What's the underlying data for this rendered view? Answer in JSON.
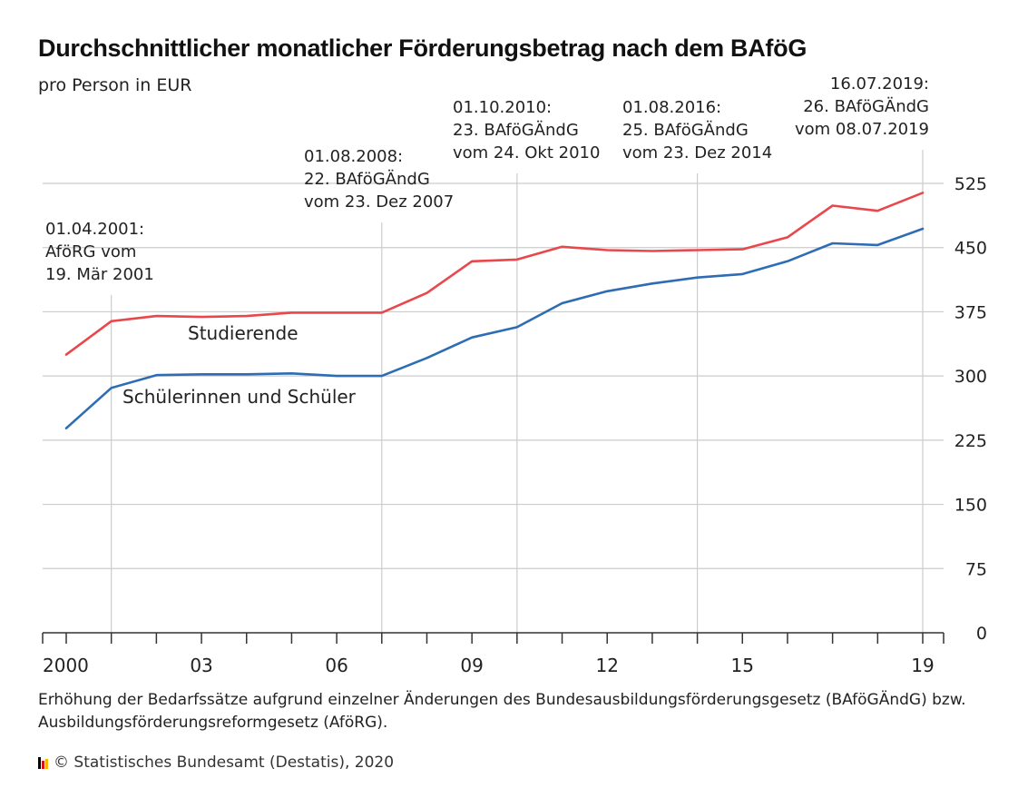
{
  "chart_data": {
    "type": "line",
    "title": "Durchschnittlicher monatlicher Förderungsbetrag nach dem BAföG",
    "subtitle": "pro Person in EUR",
    "x": [
      2000,
      2001,
      2002,
      2003,
      2004,
      2005,
      2006,
      2007,
      2008,
      2009,
      2010,
      2011,
      2012,
      2013,
      2014,
      2015,
      2016,
      2017,
      2018,
      2019
    ],
    "x_tick_values": [
      2000,
      2003,
      2006,
      2009,
      2012,
      2015,
      2019
    ],
    "x_tick_labels": [
      "2000",
      "03",
      "06",
      "09",
      "12",
      "15",
      "19"
    ],
    "ylim": [
      0,
      525
    ],
    "y_ticks": [
      0,
      75,
      150,
      225,
      300,
      375,
      450,
      525
    ],
    "grid": true,
    "series": [
      {
        "name": "Studierende",
        "color": "#e8474c",
        "values": [
          325,
          364,
          370,
          369,
          370,
          374,
          374,
          374,
          397,
          434,
          436,
          451,
          447,
          446,
          447,
          448,
          462,
          499,
          493,
          514
        ]
      },
      {
        "name": "Schülerinnen und Schüler",
        "color": "#2e6db4",
        "values": [
          239,
          286,
          301,
          302,
          302,
          303,
          300,
          300,
          321,
          345,
          357,
          385,
          399,
          408,
          415,
          419,
          434,
          455,
          453,
          472
        ]
      }
    ],
    "annotations": [
      {
        "x": 2001.0,
        "lines": [
          "01.04.2001:",
          "AföRG vom",
          "19. Mär 2001"
        ]
      },
      {
        "x": 2007.0,
        "lines": [
          "01.08.2008:",
          "22. BAföGÄndG",
          "vom 23. Dez 2007"
        ]
      },
      {
        "x": 2010.0,
        "lines": [
          "01.10.2010:",
          "23. BAföGÄndG",
          "vom 24. Okt 2010"
        ]
      },
      {
        "x": 2014.0,
        "lines": [
          "01.08.2016:",
          "25. BAföGÄndG",
          "vom 23. Dez 2014"
        ]
      },
      {
        "x": 2019.0,
        "lines": [
          "16.07.2019:",
          "26. BAföGÄndG",
          "vom 08.07.2019"
        ]
      }
    ]
  },
  "footnote": "Erhöhung der Bedarfssätze aufgrund einzelner Änderungen des Bundesausbildungsförderungsgesetz (BAföGÄndG) bzw. Ausbildungsförderungsreformgesetz (AföRG).",
  "source": "© Statistisches Bundesamt (Destatis), 2020",
  "colors": {
    "studierende": "#e8474c",
    "schueler": "#2e6db4",
    "grid": "#cccccc",
    "logo": [
      "#000000",
      "#d4141a",
      "#f5b700"
    ]
  }
}
